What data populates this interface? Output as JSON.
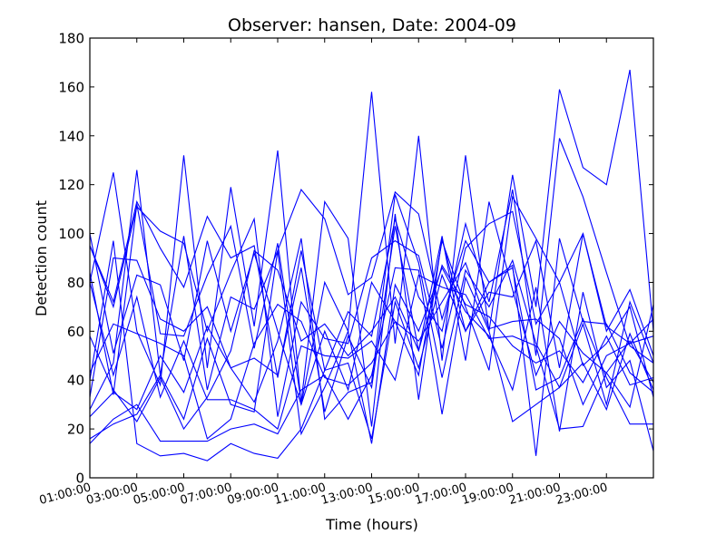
{
  "chart_data": {
    "type": "line",
    "title": "Observer: hansen, Date: 2004-09",
    "xlabel": "Time (hours)",
    "ylabel": "Detection count",
    "xlim": [
      1,
      25
    ],
    "ylim": [
      0,
      180
    ],
    "x_tick_values": [
      1,
      3,
      5,
      7,
      9,
      11,
      13,
      15,
      17,
      19,
      21,
      23
    ],
    "x_tick_labels": [
      "01:00:00",
      "03:00:00",
      "05:00:00",
      "07:00:00",
      "09:00:00",
      "11:00:00",
      "13:00:00",
      "15:00:00",
      "17:00:00",
      "19:00:00",
      "21:00:00",
      "23:00:00"
    ],
    "y_ticks": [
      0,
      20,
      40,
      60,
      80,
      100,
      120,
      140,
      160,
      180
    ],
    "y_tick_labels": [
      "0",
      "20",
      "40",
      "60",
      "80",
      "100",
      "120",
      "140",
      "160",
      "180"
    ],
    "grid": false,
    "legend": "none",
    "line_color": "#0000ff",
    "x": [
      1,
      2,
      3,
      4,
      5,
      6,
      7,
      8,
      9,
      10,
      11,
      12,
      13,
      14,
      15,
      16,
      17,
      18,
      19,
      20,
      21,
      22,
      23,
      24,
      25
    ],
    "series": [
      {
        "values": [
          80,
          125,
          60,
          38,
          132,
          45,
          119,
          62,
          134,
          30,
          80,
          60,
          158,
          55,
          140,
          48,
          132,
          60,
          124,
          70,
          159,
          127,
          120,
          167,
          60
        ]
      },
      {
        "values": [
          95,
          72,
          113,
          94,
          78,
          107,
          90,
          95,
          41,
          93,
          44,
          68,
          58,
          106,
          74,
          60,
          104,
          72,
          118,
          50,
          139,
          115,
          84,
          54,
          47
        ]
      },
      {
        "values": [
          28,
          47,
          126,
          42,
          99,
          36,
          74,
          69,
          93,
          118,
          106,
          75,
          82,
          117,
          108,
          65,
          97,
          80,
          87,
          9,
          98,
          64,
          63,
          43,
          35
        ]
      },
      {
        "values": [
          84,
          34,
          112,
          59,
          58,
          83,
          103,
          53,
          96,
          31,
          113,
          98,
          21,
          108,
          32,
          98,
          60,
          76,
          74,
          97,
          45,
          100,
          60,
          77,
          50
        ]
      },
      {
        "values": [
          95,
          70,
          111,
          101,
          96,
          60,
          84,
          106,
          25,
          72,
          57,
          55,
          90,
          97,
          91,
          53,
          94,
          104,
          109,
          63,
          80,
          46,
          55,
          70,
          33
        ]
      },
      {
        "values": [
          100,
          51,
          83,
          79,
          48,
          97,
          60,
          92,
          60,
          30,
          60,
          36,
          80,
          64,
          42,
          97,
          70,
          44,
          115,
          98,
          80,
          100,
          62,
          55,
          65
        ]
      },
      {
        "values": [
          33,
          90,
          89,
          65,
          60,
          70,
          45,
          49,
          42,
          86,
          27,
          58,
          37,
          103,
          52,
          99,
          48,
          113,
          77,
          42,
          64,
          51,
          43,
          29,
          71
        ]
      },
      {
        "values": [
          25,
          35,
          28,
          50,
          35,
          62,
          45,
          31,
          56,
          98,
          24,
          35,
          39,
          116,
          88,
          41,
          85,
          70,
          89,
          55,
          37,
          63,
          30,
          72,
          47
        ]
      },
      {
        "values": [
          16,
          22,
          26,
          42,
          24,
          57,
          30,
          27,
          93,
          18,
          37,
          60,
          14,
          79,
          60,
          86,
          68,
          58,
          36,
          78,
          19,
          76,
          37,
          48,
          11
        ]
      },
      {
        "values": [
          40,
          97,
          14,
          9,
          10,
          7,
          14,
          10,
          8,
          20,
          44,
          47,
          16,
          72,
          45,
          83,
          60,
          80,
          86,
          36,
          41,
          65,
          41,
          22,
          22
        ]
      },
      {
        "values": [
          58,
          36,
          23,
          41,
          20,
          33,
          52,
          93,
          85,
          56,
          63,
          50,
          60,
          74,
          52,
          87,
          71,
          66,
          54,
          47,
          52,
          39,
          58,
          38,
          41
        ]
      },
      {
        "values": [
          80,
          42,
          74,
          33,
          56,
          32,
          32,
          28,
          20,
          54,
          50,
          49,
          56,
          40,
          83,
          78,
          75,
          57,
          58,
          54,
          20,
          21,
          43,
          56,
          39
        ]
      },
      {
        "values": [
          43,
          63,
          59,
          55,
          50,
          16,
          24,
          55,
          71,
          64,
          41,
          38,
          47,
          64,
          56,
          72,
          88,
          61,
          64,
          65,
          57,
          30,
          50,
          55,
          58
        ]
      },
      {
        "values": [
          14,
          24,
          30,
          15,
          15,
          15,
          20,
          22,
          18,
          36,
          42,
          24,
          42,
          86,
          85,
          26,
          82,
          60,
          23,
          30,
          37,
          47,
          28,
          59,
          36
        ]
      }
    ]
  }
}
